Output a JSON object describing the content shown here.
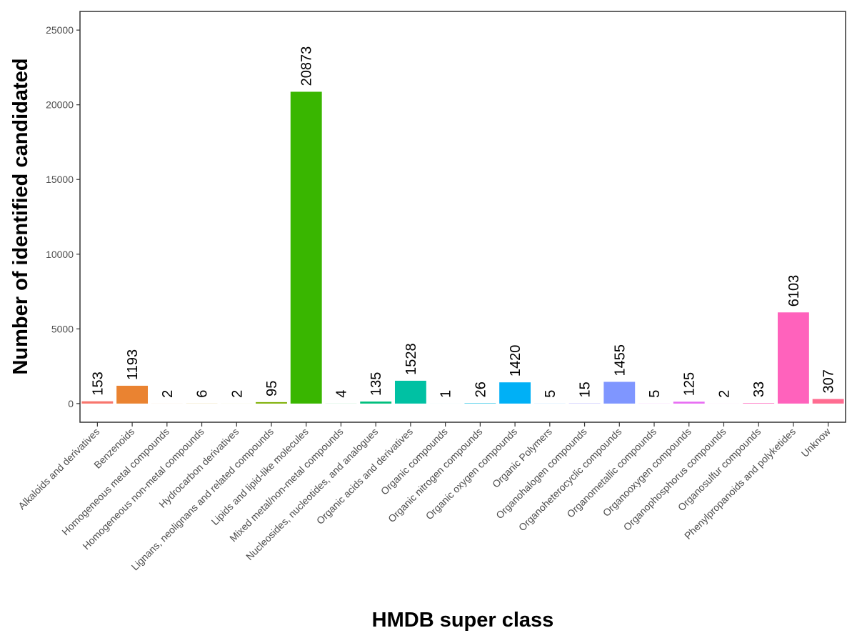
{
  "chart_data": {
    "type": "bar",
    "title": "",
    "xlabel": "HMDB super class",
    "ylabel": "Number of identified candidated",
    "ylim": [
      -1250,
      26250
    ],
    "yticks": [
      0,
      5000,
      10000,
      15000,
      20000,
      25000
    ],
    "ytick_labels": [
      "0",
      "5000",
      "10000",
      "15000",
      "20000",
      "25000"
    ],
    "grid": false,
    "legend": "none",
    "categories": [
      "Alkaloids and derivatives",
      "Benzenoids",
      "Homogeneous metal compounds",
      "Homogeneous non-metal compounds",
      "Hydrocarbon derivatives",
      "Lignans, neolignans and related compounds",
      "Lipids and lipid-like molecules",
      "Mixed metal/non-metal compounds",
      "Nucleosides, nucleotides, and analogues",
      "Organic acids and derivatives",
      "Organic compounds",
      "Organic nitrogen compounds",
      "Organic oxygen compounds",
      "Organic Polymers",
      "Organohalogen compounds",
      "Organoheterocyclic compounds",
      "Organometallic compounds",
      "Organooxygen compounds",
      "Organophosphorus compounds",
      "Organosulfur compounds",
      "Phenylpropanoids and polyketides",
      "Unknow"
    ],
    "values": [
      153,
      1193,
      2,
      6,
      2,
      95,
      20873,
      4,
      135,
      1528,
      1,
      26,
      1420,
      5,
      15,
      1455,
      5,
      125,
      2,
      33,
      6103,
      307
    ],
    "value_labels": [
      "153",
      "1193",
      "2",
      "6",
      "2",
      "95",
      "20873",
      "4",
      "135",
      "1528",
      "1",
      "26",
      "1420",
      "5",
      "15",
      "1455",
      "5",
      "125",
      "2",
      "33",
      "6103",
      "307"
    ],
    "colors": [
      "#F8766D",
      "#EA8331",
      "#D89000",
      "#C09B00",
      "#A3A500",
      "#7CAE00",
      "#39B600",
      "#00BB4E",
      "#00BF7D",
      "#00C1A3",
      "#00BFC4",
      "#00BAE0",
      "#00B0F6",
      "#35A2FF",
      "#9590FF",
      "#7F96FF",
      "#E76BF3",
      "#E76BF3",
      "#FA62DB",
      "#FF62BC",
      "#FF62BC",
      "#FF6C91"
    ]
  }
}
